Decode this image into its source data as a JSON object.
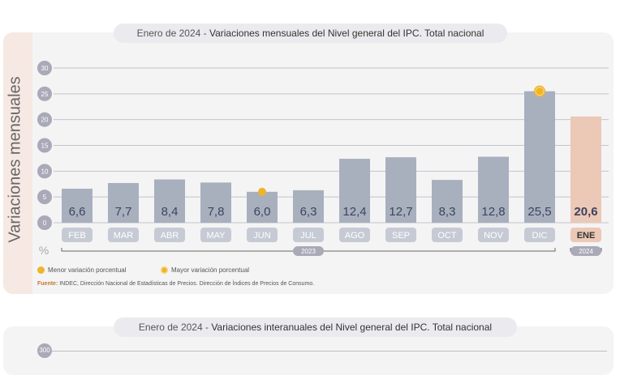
{
  "chart_data": {
    "type": "bar",
    "title_prefix": "Enero de 2024",
    "title_separator": " - ",
    "title": "Variaciones mensuales del Nivel general del IPC. Total nacional",
    "ylabel": "Variaciones mensuales",
    "yunit": "%",
    "ylim": [
      0,
      30
    ],
    "yticks": [
      "0",
      "5",
      "10",
      "15",
      "20",
      "25",
      "30"
    ],
    "categories": [
      "FEB",
      "MAR",
      "ABR",
      "MAY",
      "JUN",
      "JUL",
      "AGO",
      "SEP",
      "OCT",
      "NOV",
      "DIC",
      "ENE"
    ],
    "values": [
      6.6,
      7.7,
      8.4,
      7.8,
      6.0,
      6.3,
      12.4,
      12.7,
      8.3,
      12.8,
      25.5,
      20.6
    ],
    "value_labels": [
      "6,6",
      "7,7",
      "8,4",
      "7,8",
      "6,0",
      "6,3",
      "12,4",
      "12,7",
      "8,3",
      "12,8",
      "25,5",
      "20,6"
    ],
    "year_groups": [
      {
        "label": "2023",
        "from": 0,
        "to": 10
      },
      {
        "label": "2024",
        "from": 11,
        "to": 11
      }
    ],
    "min_index": 4,
    "max_index": 10,
    "highlight_index": 11,
    "colors": {
      "bar": "#a8b0be",
      "bar_highlight": "#ecc8b6",
      "cat_bg": "#c6cad4",
      "cat_bg_highlight": "#ecc8b6",
      "marker": "#f0b428",
      "label": "#3d4460",
      "grid": "#c4c4cc",
      "tick_badge": "#a9a9b8"
    }
  },
  "legend": {
    "min_label": "Menor variación porcentual",
    "max_label": "Mayor variación porcentual"
  },
  "source": {
    "label": "Fuente:",
    "text": "INDEC, Dirección Nacional de Estadísticas de Precios. Dirección de Índices de Precios de Consumo."
  },
  "second_chart": {
    "title_prefix": "Enero de 2024",
    "title_separator": " - ",
    "title": "Variaciones interanuales del Nivel general del IPC. Total nacional",
    "first_tick": "300"
  }
}
